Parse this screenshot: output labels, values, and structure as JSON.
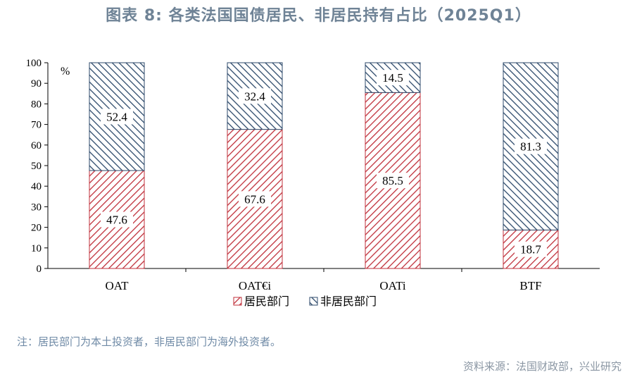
{
  "title": "图表 8:  各类法国国债居民、非居民持有占比（2025Q1）",
  "note": "注：居民部门为本土投资者，非居民部门为海外投资者。",
  "source": "资料来源：法国财政部，兴业研究",
  "colors": {
    "resident": "#c0303b",
    "nonresident": "#2d4a6b",
    "title": "#6f8396"
  },
  "chart_data": {
    "type": "bar",
    "stacked": true,
    "categories": [
      "OAT",
      "OAT€i",
      "OATi",
      "BTF"
    ],
    "series": [
      {
        "name": "居民部门",
        "values": [
          47.6,
          67.6,
          85.5,
          18.7
        ]
      },
      {
        "name": "非居民部门",
        "values": [
          52.4,
          32.4,
          14.5,
          81.3
        ]
      }
    ],
    "ylabel": "%",
    "ylim": [
      0,
      100
    ],
    "yticks": [
      0,
      10,
      20,
      30,
      40,
      50,
      60,
      70,
      80,
      90,
      100
    ],
    "legend_position": "bottom",
    "grid": false
  }
}
